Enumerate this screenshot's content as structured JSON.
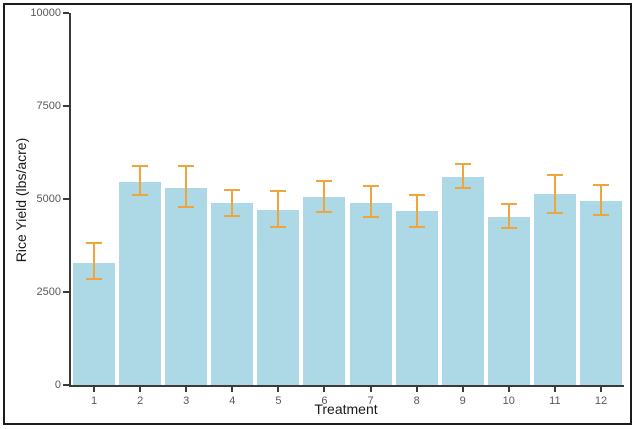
{
  "figure": {
    "background_color": "#ffffff",
    "border_color": "#1c1c1c"
  },
  "chart_data": {
    "type": "bar",
    "title": "",
    "xlabel": "Treatment",
    "ylabel": "Rice Yield (lbs/acre)",
    "categories": [
      "1",
      "2",
      "3",
      "4",
      "5",
      "6",
      "7",
      "8",
      "9",
      "10",
      "11",
      "12"
    ],
    "series": [
      {
        "name": "Rice Yield",
        "values": [
          3280,
          5450,
          5300,
          4890,
          4710,
          5050,
          4900,
          4670,
          5590,
          4510,
          5140,
          4950
        ],
        "error_upper": [
          3810,
          5880,
          5900,
          5230,
          5210,
          5480,
          5340,
          5110,
          5950,
          4870,
          5650,
          5380
        ],
        "error_lower": [
          2850,
          5100,
          4780,
          4530,
          4260,
          4660,
          4510,
          4240,
          5290,
          4220,
          4620,
          4560
        ]
      }
    ],
    "ylim": [
      0,
      10000
    ],
    "yticks": [
      "0",
      "2500",
      "5000",
      "7500",
      "10000"
    ],
    "grid": false,
    "legend_position": "none",
    "bar_fill_color": "#ADD8E6",
    "error_bar_color": "#F0A43C",
    "axis_line_color": "#3a3a3a",
    "tick_label_color": "#595959",
    "axis_title_color": "#1a1a1a"
  }
}
